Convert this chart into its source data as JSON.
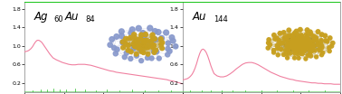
{
  "fig_width": 3.78,
  "fig_height": 1.04,
  "dpi": 100,
  "background_color": "#ffffff",
  "panel_border_color": "#808080",
  "ylim": [
    0.0,
    1.95
  ],
  "yticks": [
    0.2,
    0.6,
    1.0,
    1.4,
    1.8
  ],
  "yticklabels": [
    "0.2",
    "0.6",
    "1.0",
    "1.4",
    "1.8"
  ],
  "green_top_color": "#00cc00",
  "green_line_color": "#22bb22",
  "pink_line_color": "#f080a0",
  "panel1": {
    "label_ag": "Ag",
    "label_60": "60",
    "label_au": "Au",
    "label_84": "84",
    "ag_color": "#8899cc",
    "au_color": "#c8a020",
    "bond_color_ag": "#9999bb",
    "bond_color_au": "#a08010",
    "pink_curve_x": [
      0.0,
      0.01,
      0.02,
      0.03,
      0.04,
      0.05,
      0.06,
      0.07,
      0.08,
      0.09,
      0.1,
      0.11,
      0.12,
      0.13,
      0.14,
      0.15,
      0.16,
      0.17,
      0.18,
      0.19,
      0.2,
      0.22,
      0.24,
      0.26,
      0.28,
      0.3,
      0.32,
      0.34,
      0.36,
      0.38,
      0.4,
      0.42,
      0.44,
      0.46,
      0.48,
      0.5,
      0.52,
      0.54,
      0.56,
      0.58,
      0.6,
      0.62,
      0.64,
      0.66,
      0.68,
      0.7,
      0.72,
      0.74,
      0.76,
      0.78,
      0.8,
      0.82,
      0.84,
      0.86,
      0.88,
      0.9,
      0.92,
      0.94,
      0.96,
      0.98,
      1.0
    ],
    "pink_curve_y": [
      0.87,
      0.88,
      0.89,
      0.91,
      0.94,
      0.98,
      1.04,
      1.09,
      1.12,
      1.12,
      1.1,
      1.07,
      1.02,
      0.97,
      0.92,
      0.87,
      0.82,
      0.78,
      0.74,
      0.72,
      0.7,
      0.67,
      0.64,
      0.62,
      0.6,
      0.59,
      0.59,
      0.6,
      0.6,
      0.6,
      0.59,
      0.58,
      0.56,
      0.54,
      0.52,
      0.5,
      0.48,
      0.46,
      0.45,
      0.43,
      0.42,
      0.41,
      0.4,
      0.39,
      0.38,
      0.37,
      0.36,
      0.35,
      0.34,
      0.33,
      0.32,
      0.31,
      0.3,
      0.29,
      0.28,
      0.27,
      0.25,
      0.24,
      0.22,
      0.2,
      0.18
    ],
    "green_spikes_x": [
      0.05,
      0.1,
      0.14,
      0.18,
      0.22,
      0.26,
      0.32,
      0.38,
      0.45,
      0.52,
      0.6,
      0.68,
      0.76,
      0.85,
      0.93
    ],
    "green_spikes_y": [
      0.04,
      0.05,
      0.06,
      0.08,
      0.06,
      0.05,
      0.07,
      0.05,
      0.04,
      0.06,
      0.04,
      0.05,
      0.04,
      0.04,
      0.04
    ]
  },
  "panel2": {
    "label_au": "Au",
    "label_144": "144",
    "au_color": "#c8a020",
    "bond_color": "#a08010",
    "pink_curve_x": [
      0.0,
      0.01,
      0.02,
      0.03,
      0.04,
      0.05,
      0.06,
      0.07,
      0.08,
      0.09,
      0.1,
      0.11,
      0.12,
      0.13,
      0.14,
      0.15,
      0.16,
      0.17,
      0.18,
      0.19,
      0.2,
      0.22,
      0.24,
      0.26,
      0.28,
      0.3,
      0.32,
      0.34,
      0.36,
      0.38,
      0.4,
      0.42,
      0.44,
      0.46,
      0.48,
      0.5,
      0.52,
      0.54,
      0.56,
      0.58,
      0.6,
      0.62,
      0.64,
      0.66,
      0.68,
      0.7,
      0.72,
      0.74,
      0.76,
      0.78,
      0.8,
      0.82,
      0.84,
      0.86,
      0.88,
      0.9,
      0.92,
      0.94,
      0.96,
      0.98,
      1.0
    ],
    "pink_curve_y": [
      0.27,
      0.27,
      0.28,
      0.29,
      0.31,
      0.34,
      0.38,
      0.44,
      0.52,
      0.62,
      0.74,
      0.84,
      0.91,
      0.93,
      0.91,
      0.86,
      0.78,
      0.68,
      0.57,
      0.48,
      0.4,
      0.35,
      0.33,
      0.33,
      0.35,
      0.39,
      0.44,
      0.5,
      0.55,
      0.6,
      0.63,
      0.64,
      0.64,
      0.62,
      0.59,
      0.55,
      0.51,
      0.47,
      0.43,
      0.4,
      0.37,
      0.34,
      0.32,
      0.3,
      0.28,
      0.27,
      0.25,
      0.24,
      0.23,
      0.22,
      0.21,
      0.2,
      0.2,
      0.19,
      0.19,
      0.18,
      0.18,
      0.18,
      0.17,
      0.17,
      0.17
    ],
    "green_spikes_x": [
      0.05,
      0.12,
      0.18,
      0.25,
      0.32,
      0.4,
      0.5,
      0.6,
      0.7,
      0.8,
      0.9
    ],
    "green_spikes_y": [
      0.03,
      0.03,
      0.03,
      0.03,
      0.03,
      0.03,
      0.03,
      0.03,
      0.03,
      0.03,
      0.03
    ]
  }
}
